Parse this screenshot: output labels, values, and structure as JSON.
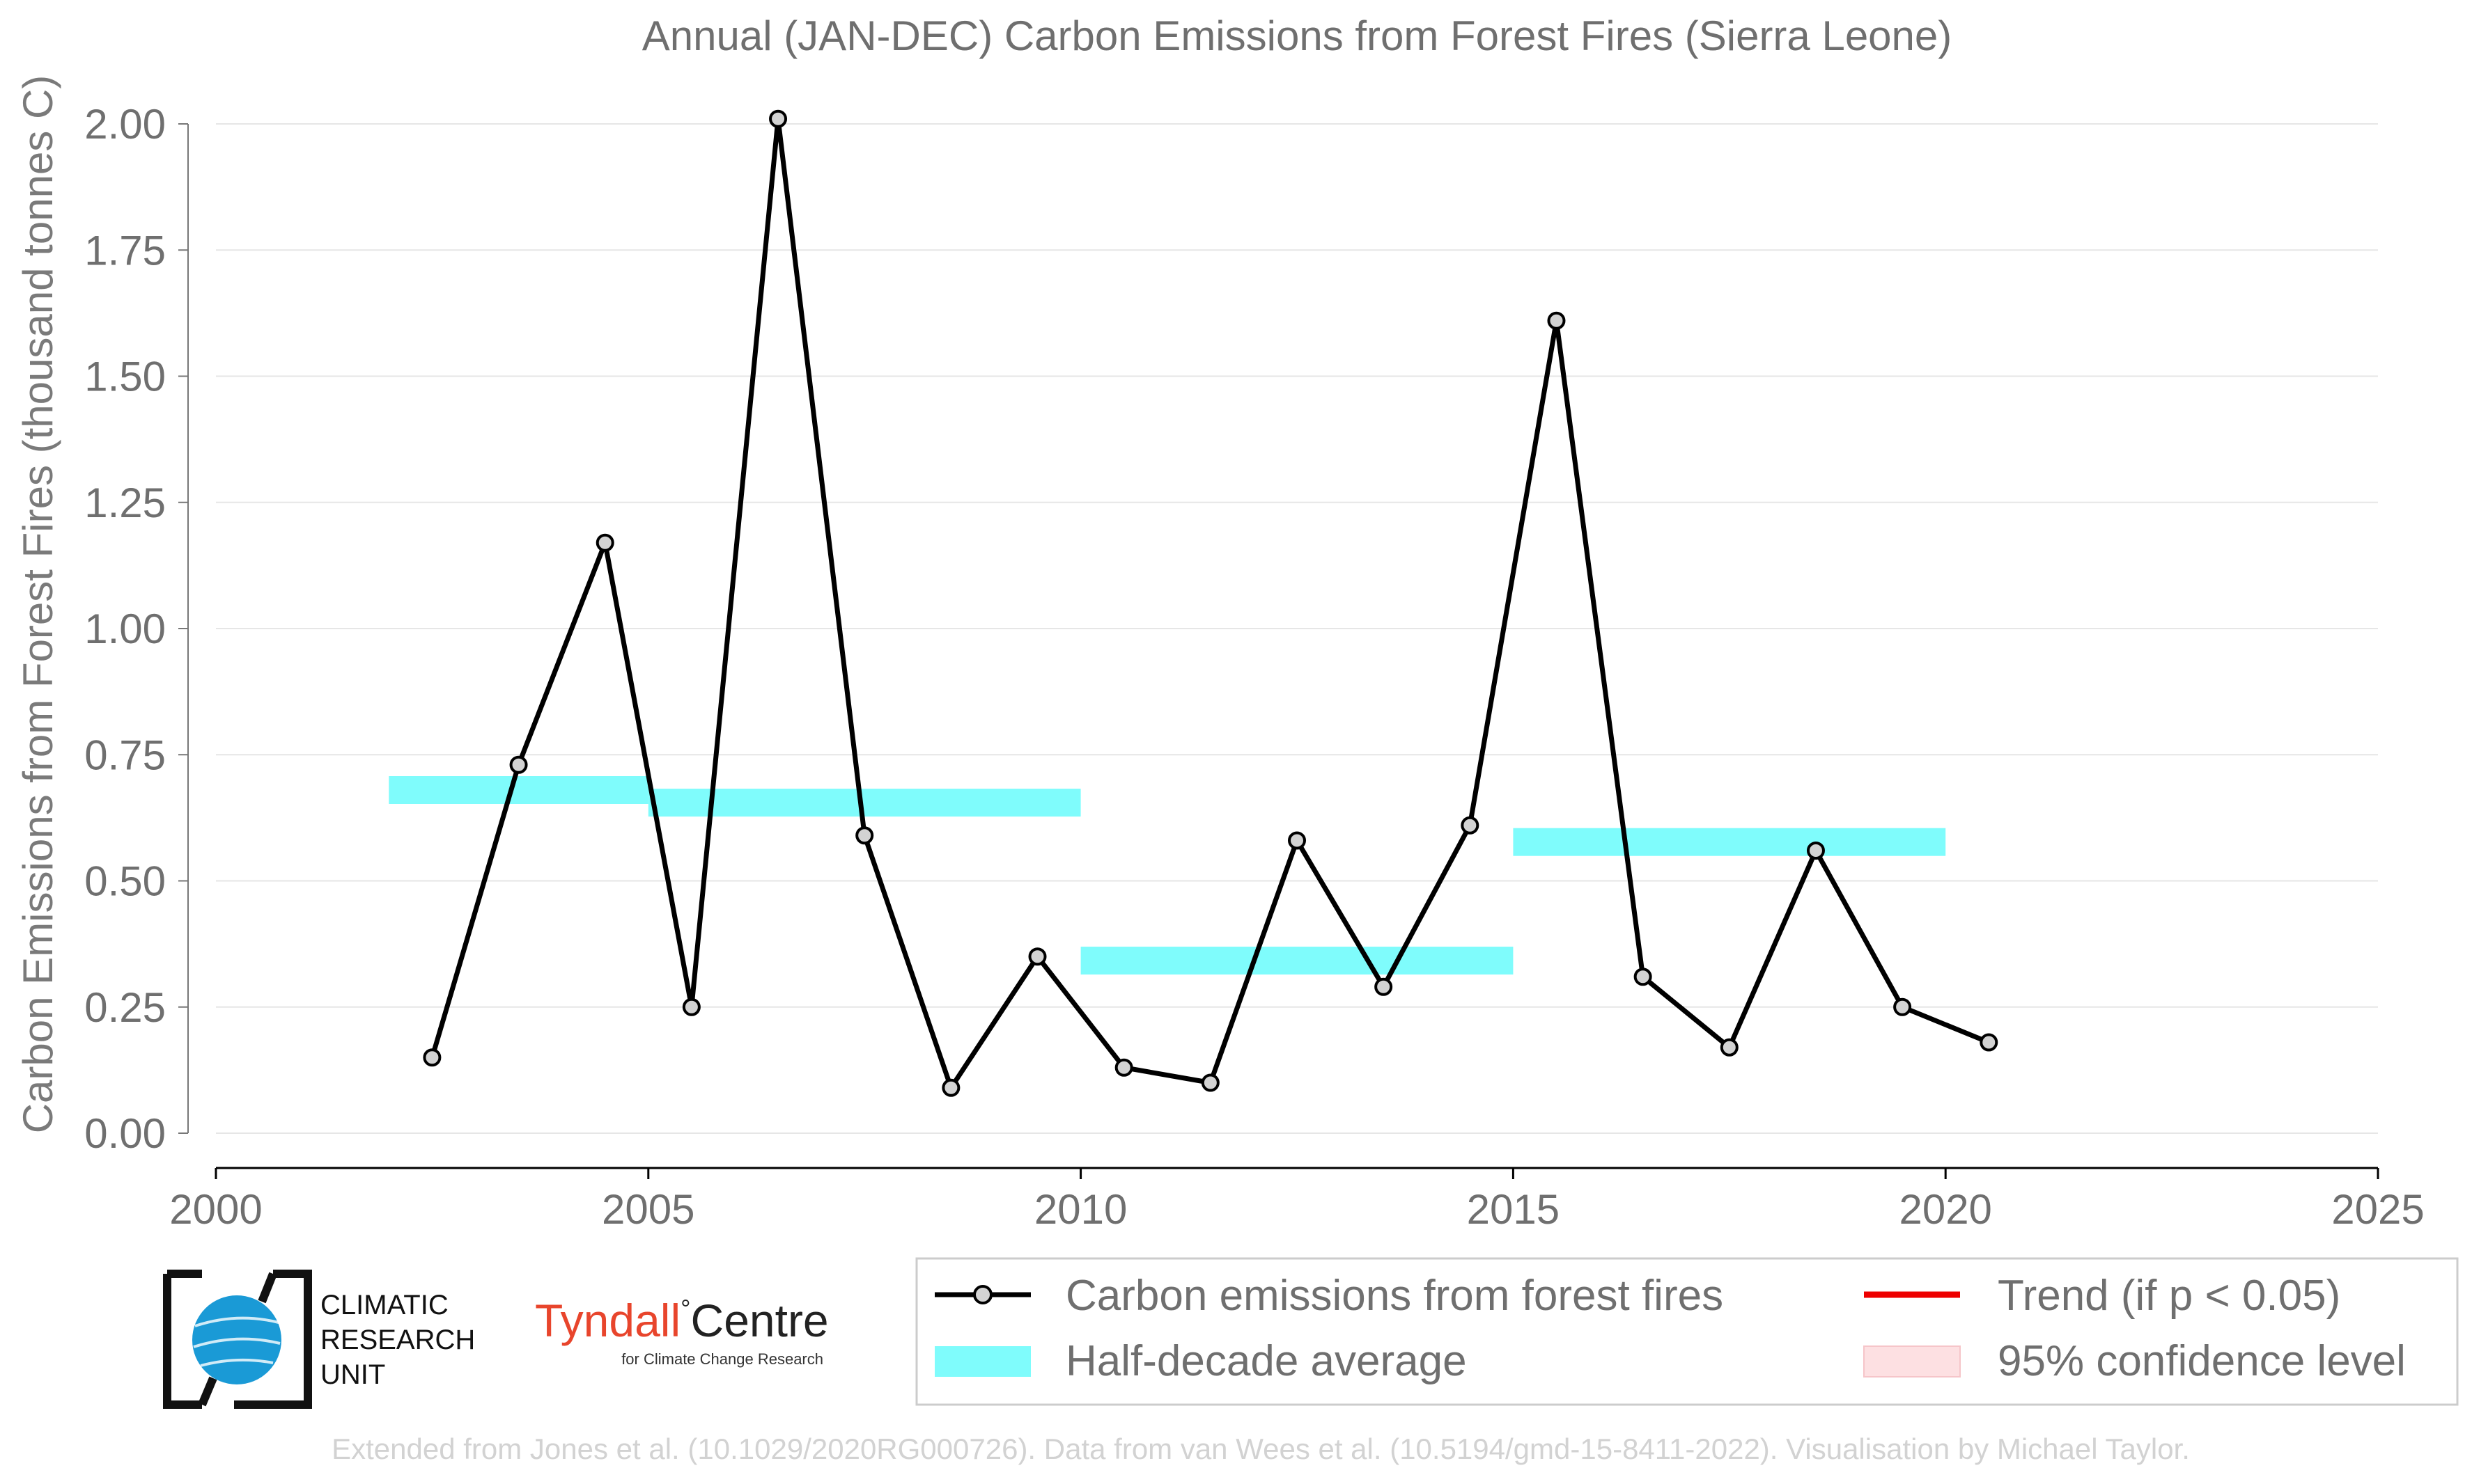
{
  "chart_data": {
    "type": "line",
    "title": "Annual (JAN-DEC) Carbon Emissions from Forest Fires (Sierra Leone)",
    "ylabel": "Carbon Emissions from Forest Fires (thousand tonnes C)",
    "xlabel": "",
    "xlim": [
      2000,
      2025
    ],
    "ylim": [
      0,
      2.0
    ],
    "x_ticks": [
      2000,
      2005,
      2010,
      2015,
      2020,
      2025
    ],
    "x_tick_labels": [
      "2000",
      "2005",
      "2010",
      "2015",
      "2020",
      "2025"
    ],
    "y_ticks": [
      0,
      0.25,
      0.5,
      0.75,
      1.0,
      1.25,
      1.5,
      1.75,
      2.0
    ],
    "y_tick_labels": [
      "0.00",
      "0.25",
      "0.50",
      "0.75",
      "1.00",
      "1.25",
      "1.50",
      "1.75",
      "2.00"
    ],
    "grid": "horizontal",
    "series": [
      {
        "name": "Carbon emissions from forest fires",
        "color": "#000000",
        "x": [
          2002.5,
          2003.5,
          2004.5,
          2005.5,
          2006.5,
          2007.5,
          2008.5,
          2009.5,
          2010.5,
          2011.5,
          2012.5,
          2013.5,
          2014.5,
          2015.5,
          2016.5,
          2017.5,
          2018.5,
          2019.5,
          2020.5
        ],
        "y": [
          0.15,
          0.73,
          1.17,
          0.25,
          2.01,
          0.59,
          0.09,
          0.35,
          0.13,
          0.1,
          0.58,
          0.29,
          0.61,
          1.61,
          0.31,
          0.17,
          0.56,
          0.25,
          0.18
        ]
      }
    ],
    "half_decade_averages": {
      "name": "Half-decade average",
      "color": "#7ffcfc",
      "segments": [
        {
          "x_start": 2002,
          "x_end": 2005,
          "value": 0.68
        },
        {
          "x_start": 2005,
          "x_end": 2010,
          "value": 0.655
        },
        {
          "x_start": 2010,
          "x_end": 2015,
          "value": 0.342
        },
        {
          "x_start": 2015,
          "x_end": 2020,
          "value": 0.577
        }
      ]
    },
    "legend": {
      "placement": "bottom-right",
      "items": [
        {
          "label": "Carbon emissions from forest fires",
          "kind": "line-marker",
          "color": "#000000"
        },
        {
          "label": "Trend (if p < 0.05)",
          "kind": "line",
          "color": "#ee0000"
        },
        {
          "label": "Half-decade average",
          "kind": "band",
          "color": "#7ffcfc"
        },
        {
          "label": "95% confidence level",
          "kind": "band",
          "color": "#fde0e2"
        }
      ]
    }
  },
  "logos": {
    "cru_lines": [
      "CLIMATIC",
      "RESEARCH",
      "UNIT"
    ],
    "tyndall_left": "Tyndall",
    "tyndall_right": "Centre",
    "tyndall_sub": "for Climate Change Research"
  },
  "credit": "Extended from Jones et al. (10.1029/2020RG000726). Data from van Wees et al. (10.5194/gmd-15-8411-2022). Visualisation by Michael Taylor.",
  "colors": {
    "tyndall_red": "#e8452c",
    "cru_blue": "#1a9ad6"
  }
}
